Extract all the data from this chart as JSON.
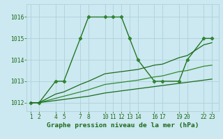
{
  "series": [
    {
      "x": [
        1,
        2,
        4,
        5,
        7,
        8,
        10,
        11,
        12,
        13,
        14,
        16,
        17,
        19,
        20,
        22,
        23
      ],
      "y": [
        1012,
        1012,
        1013,
        1013,
        1015,
        1016,
        1016,
        1016,
        1016,
        1015,
        1014,
        1013,
        1013,
        1013,
        1014,
        1015,
        1015
      ],
      "linestyle": "-",
      "marker": "D",
      "markersize": 2.5,
      "linewidth": 0.9,
      "color": "#1a6b1a"
    },
    {
      "x": [
        1,
        2,
        4,
        5,
        7,
        8,
        10,
        11,
        12,
        13,
        14,
        16,
        17,
        19,
        20,
        22,
        23
      ],
      "y": [
        1012,
        1012,
        1013,
        1013,
        1015,
        1016,
        1016,
        1016,
        1016,
        1015,
        1014,
        1013,
        1013,
        1013,
        1014,
        1015,
        1015
      ],
      "linestyle": ":",
      "marker": "D",
      "markersize": 2.0,
      "linewidth": 0.8,
      "color": "#2d8b2d"
    },
    {
      "x": [
        1,
        2,
        4,
        5,
        7,
        8,
        10,
        11,
        12,
        13,
        14,
        16,
        17,
        19,
        20,
        22,
        23
      ],
      "y": [
        1012,
        1012,
        1012.1,
        1012.15,
        1012.25,
        1012.3,
        1012.45,
        1012.5,
        1012.55,
        1012.6,
        1012.65,
        1012.75,
        1012.8,
        1012.9,
        1012.95,
        1013.05,
        1013.1
      ],
      "linestyle": "-",
      "marker": null,
      "markersize": 0,
      "linewidth": 0.9,
      "color": "#1a6b1a"
    },
    {
      "x": [
        1,
        2,
        4,
        5,
        7,
        8,
        10,
        11,
        12,
        13,
        14,
        16,
        17,
        19,
        20,
        22,
        23
      ],
      "y": [
        1012,
        1012,
        1012.2,
        1012.3,
        1012.5,
        1012.6,
        1012.85,
        1012.9,
        1012.95,
        1013.0,
        1013.05,
        1013.2,
        1013.25,
        1013.45,
        1013.5,
        1013.7,
        1013.75
      ],
      "linestyle": "-",
      "marker": null,
      "markersize": 0,
      "linewidth": 0.9,
      "color": "#2d8b2d"
    },
    {
      "x": [
        1,
        2,
        4,
        5,
        7,
        8,
        10,
        11,
        12,
        13,
        14,
        16,
        17,
        19,
        20,
        22,
        23
      ],
      "y": [
        1012,
        1012,
        1012.4,
        1012.5,
        1012.85,
        1013.0,
        1013.35,
        1013.4,
        1013.45,
        1013.5,
        1013.55,
        1013.75,
        1013.8,
        1014.1,
        1014.2,
        1014.7,
        1014.8
      ],
      "linestyle": "-",
      "marker": null,
      "markersize": 0,
      "linewidth": 0.9,
      "color": "#1a6b1a"
    }
  ],
  "xticks": [
    1,
    2,
    4,
    5,
    7,
    8,
    10,
    11,
    12,
    13,
    14,
    16,
    17,
    19,
    20,
    22,
    23
  ],
  "xlim": [
    0.5,
    23.8
  ],
  "ylim": [
    1011.6,
    1016.6
  ],
  "yticks": [
    1012,
    1013,
    1014,
    1015,
    1016
  ],
  "xlabel": "Graphe pression niveau de la mer (hPa)",
  "bg_color": "#cce8f0",
  "grid_color": "#a8cdd8",
  "line_color": "#1a6b1a",
  "text_color": "#1a6b1a",
  "xlabel_fontsize": 6.8,
  "tick_fontsize": 5.8
}
